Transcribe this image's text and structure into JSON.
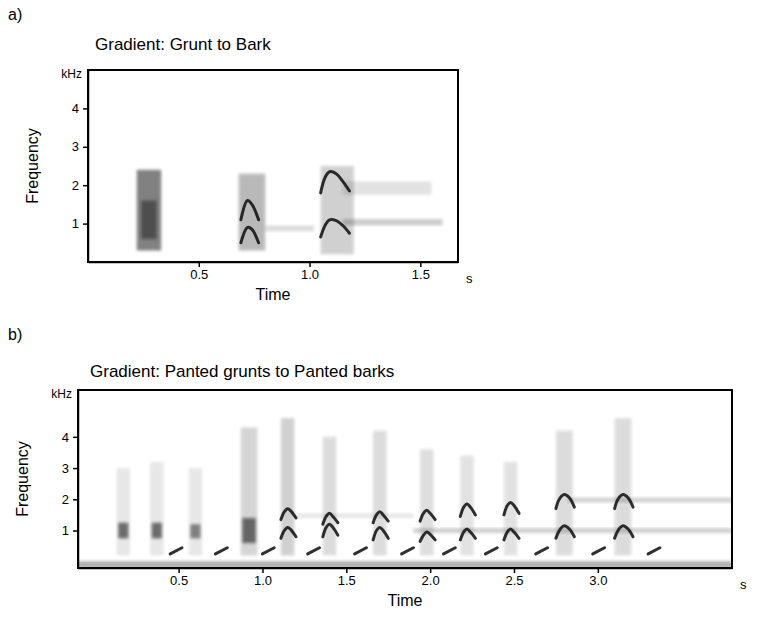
{
  "chart_data": [
    {
      "type": "spectrogram",
      "panel": "a)",
      "title": "Gradient: Grunt to Bark",
      "xlabel": "Time",
      "ylabel": "Frequency",
      "x_unit": "s",
      "y_unit": "kHz",
      "xlim": [
        0,
        1.67
      ],
      "ylim": [
        0,
        5
      ],
      "xticks": [
        0.5,
        {
          "value": 1,
          "label": "1.0"
        },
        1.5
      ],
      "yticks": [
        1,
        2,
        3,
        4
      ],
      "bands": [
        {
          "t0": 0.22,
          "t1": 0.33,
          "f0": 0.3,
          "f1": 2.4,
          "level": 0.55
        },
        {
          "t0": 0.24,
          "t1": 0.31,
          "f0": 0.6,
          "f1": 1.6,
          "level": 0.5
        },
        {
          "t0": 0.68,
          "t1": 0.8,
          "f0": 0.3,
          "f1": 2.3,
          "level": 0.3
        },
        {
          "t0": 0.8,
          "t1": 1.02,
          "f0": 0.8,
          "f1": 0.95,
          "level": 0.15
        },
        {
          "t0": 1.05,
          "t1": 1.2,
          "f0": 0.2,
          "f1": 2.5,
          "level": 0.2
        },
        {
          "t0": 1.15,
          "t1": 1.55,
          "f0": 1.75,
          "f1": 2.1,
          "level": 0.12
        },
        {
          "t0": 1.15,
          "t1": 1.6,
          "f0": 0.95,
          "f1": 1.12,
          "level": 0.22
        }
      ],
      "contours": [
        {
          "t": [
            0.69,
            0.72,
            0.74,
            0.77
          ],
          "f": [
            1.1,
            1.6,
            1.5,
            1.1
          ]
        },
        {
          "t": [
            0.69,
            0.72,
            0.74,
            0.77
          ],
          "f": [
            0.5,
            0.9,
            0.85,
            0.5
          ]
        },
        {
          "t": [
            1.05,
            1.07,
            1.09,
            1.12,
            1.15,
            1.18
          ],
          "f": [
            1.8,
            2.2,
            2.35,
            2.3,
            2.1,
            1.85
          ]
        },
        {
          "t": [
            1.05,
            1.07,
            1.09,
            1.12,
            1.15,
            1.18
          ],
          "f": [
            0.65,
            0.95,
            1.1,
            1.08,
            0.95,
            0.75
          ]
        }
      ]
    },
    {
      "type": "spectrogram",
      "panel": "b)",
      "title": "Gradient: Panted grunts to Panted barks",
      "xlabel": "Time",
      "ylabel": "Frequency",
      "x_unit": "s",
      "y_unit": "kHz",
      "xlim": [
        -0.1,
        3.8
      ],
      "ylim": [
        -0.2,
        5.5
      ],
      "xticks": [
        0.5,
        {
          "value": 1,
          "label": "1.0"
        },
        1.5,
        {
          "value": 2,
          "label": "2.0"
        },
        2.5,
        {
          "value": 3,
          "label": "3.0"
        }
      ],
      "yticks": [
        1,
        2,
        3,
        4
      ],
      "bands": [
        {
          "t0": -0.1,
          "t1": 3.8,
          "f0": -0.2,
          "f1": 0.02,
          "level": 0.35
        },
        {
          "t0": 0.14,
          "t1": 0.2,
          "f0": 0.75,
          "f1": 1.25,
          "level": 0.6
        },
        {
          "t0": 0.13,
          "t1": 0.21,
          "f0": 0.2,
          "f1": 3.0,
          "level": 0.1
        },
        {
          "t0": 0.34,
          "t1": 0.4,
          "f0": 0.75,
          "f1": 1.25,
          "level": 0.6
        },
        {
          "t0": 0.33,
          "t1": 0.41,
          "f0": 0.2,
          "f1": 3.2,
          "level": 0.1
        },
        {
          "t0": 0.57,
          "t1": 0.63,
          "f0": 0.75,
          "f1": 1.2,
          "level": 0.5
        },
        {
          "t0": 0.56,
          "t1": 0.64,
          "f0": 0.2,
          "f1": 3.0,
          "level": 0.1
        },
        {
          "t0": 0.88,
          "t1": 0.96,
          "f0": 0.6,
          "f1": 1.4,
          "level": 0.6
        },
        {
          "t0": 0.87,
          "t1": 0.97,
          "f0": 0.2,
          "f1": 4.3,
          "level": 0.18
        },
        {
          "t0": 1.11,
          "t1": 1.19,
          "f0": 0.2,
          "f1": 4.6,
          "level": 0.2
        },
        {
          "t0": 1.36,
          "t1": 1.44,
          "f0": 0.2,
          "f1": 4.0,
          "level": 0.15
        },
        {
          "t0": 1.66,
          "t1": 1.74,
          "f0": 0.2,
          "f1": 4.2,
          "level": 0.15
        },
        {
          "t0": 1.94,
          "t1": 2.02,
          "f0": 0.2,
          "f1": 3.6,
          "level": 0.14
        },
        {
          "t0": 2.18,
          "t1": 2.26,
          "f0": 0.2,
          "f1": 3.4,
          "level": 0.12
        },
        {
          "t0": 2.44,
          "t1": 2.52,
          "f0": 0.2,
          "f1": 3.2,
          "level": 0.12
        },
        {
          "t0": 2.75,
          "t1": 2.85,
          "f0": 0.2,
          "f1": 4.2,
          "level": 0.15
        },
        {
          "t0": 3.1,
          "t1": 3.2,
          "f0": 0.2,
          "f1": 4.6,
          "level": 0.15
        },
        {
          "t0": 1.9,
          "t1": 3.8,
          "f0": 0.92,
          "f1": 1.08,
          "level": 0.2
        },
        {
          "t0": 2.82,
          "t1": 3.8,
          "f0": 1.9,
          "f1": 2.05,
          "level": 0.2
        },
        {
          "t0": 1.2,
          "t1": 1.9,
          "f0": 1.4,
          "f1": 1.55,
          "level": 0.1
        }
      ],
      "contours": [
        {
          "t": [
            1.11,
            1.13,
            1.15,
            1.17,
            1.2
          ],
          "f": [
            0.75,
            1.0,
            1.1,
            1.02,
            0.8
          ]
        },
        {
          "t": [
            1.11,
            1.13,
            1.15,
            1.17,
            1.2
          ],
          "f": [
            1.35,
            1.6,
            1.7,
            1.62,
            1.4
          ]
        },
        {
          "t": [
            1.36,
            1.38,
            1.4,
            1.42,
            1.45
          ],
          "f": [
            0.8,
            1.1,
            1.2,
            1.1,
            0.85
          ]
        },
        {
          "t": [
            1.36,
            1.38,
            1.4,
            1.42,
            1.45
          ],
          "f": [
            1.2,
            1.45,
            1.55,
            1.45,
            1.25
          ]
        },
        {
          "t": [
            1.66,
            1.68,
            1.7,
            1.72,
            1.75
          ],
          "f": [
            0.7,
            1.0,
            1.1,
            1.0,
            0.75
          ]
        },
        {
          "t": [
            1.66,
            1.68,
            1.7,
            1.72,
            1.75
          ],
          "f": [
            1.25,
            1.5,
            1.6,
            1.5,
            1.3
          ]
        },
        {
          "t": [
            1.94,
            1.96,
            1.98,
            2.0,
            2.03
          ],
          "f": [
            0.65,
            0.85,
            0.95,
            0.88,
            0.7
          ]
        },
        {
          "t": [
            1.94,
            1.96,
            1.98,
            2.0,
            2.03
          ],
          "f": [
            1.3,
            1.55,
            1.65,
            1.55,
            1.35
          ]
        },
        {
          "t": [
            2.18,
            2.2,
            2.22,
            2.24,
            2.27
          ],
          "f": [
            0.7,
            0.95,
            1.05,
            0.95,
            0.75
          ]
        },
        {
          "t": [
            2.18,
            2.2,
            2.22,
            2.24,
            2.27
          ],
          "f": [
            1.45,
            1.75,
            1.85,
            1.75,
            1.5
          ]
        },
        {
          "t": [
            2.44,
            2.46,
            2.48,
            2.5,
            2.53
          ],
          "f": [
            0.7,
            0.95,
            1.05,
            0.95,
            0.75
          ]
        },
        {
          "t": [
            2.44,
            2.46,
            2.48,
            2.5,
            2.53
          ],
          "f": [
            1.5,
            1.8,
            1.9,
            1.8,
            1.55
          ]
        },
        {
          "t": [
            2.75,
            2.77,
            2.8,
            2.83,
            2.86
          ],
          "f": [
            0.75,
            1.0,
            1.15,
            1.05,
            0.8
          ]
        },
        {
          "t": [
            2.75,
            2.77,
            2.8,
            2.83,
            2.86
          ],
          "f": [
            1.7,
            2.0,
            2.15,
            2.05,
            1.75
          ]
        },
        {
          "t": [
            3.1,
            3.12,
            3.15,
            3.18,
            3.21
          ],
          "f": [
            0.75,
            1.0,
            1.15,
            1.05,
            0.8
          ]
        },
        {
          "t": [
            3.1,
            3.12,
            3.15,
            3.18,
            3.21
          ],
          "f": [
            1.7,
            2.0,
            2.15,
            2.05,
            1.75
          ]
        },
        {
          "t": [
            0.45,
            0.52
          ],
          "f": [
            0.25,
            0.45
          ]
        },
        {
          "t": [
            0.72,
            0.79
          ],
          "f": [
            0.25,
            0.45
          ]
        },
        {
          "t": [
            1.0,
            1.07
          ],
          "f": [
            0.25,
            0.45
          ]
        },
        {
          "t": [
            1.27,
            1.34
          ],
          "f": [
            0.25,
            0.45
          ]
        },
        {
          "t": [
            1.55,
            1.62
          ],
          "f": [
            0.25,
            0.45
          ]
        },
        {
          "t": [
            1.83,
            1.9
          ],
          "f": [
            0.25,
            0.45
          ]
        },
        {
          "t": [
            2.08,
            2.15
          ],
          "f": [
            0.25,
            0.45
          ]
        },
        {
          "t": [
            2.33,
            2.4
          ],
          "f": [
            0.25,
            0.45
          ]
        },
        {
          "t": [
            2.63,
            2.7
          ],
          "f": [
            0.25,
            0.45
          ]
        },
        {
          "t": [
            2.97,
            3.04
          ],
          "f": [
            0.25,
            0.45
          ]
        },
        {
          "t": [
            3.3,
            3.37
          ],
          "f": [
            0.25,
            0.45
          ]
        }
      ]
    }
  ]
}
